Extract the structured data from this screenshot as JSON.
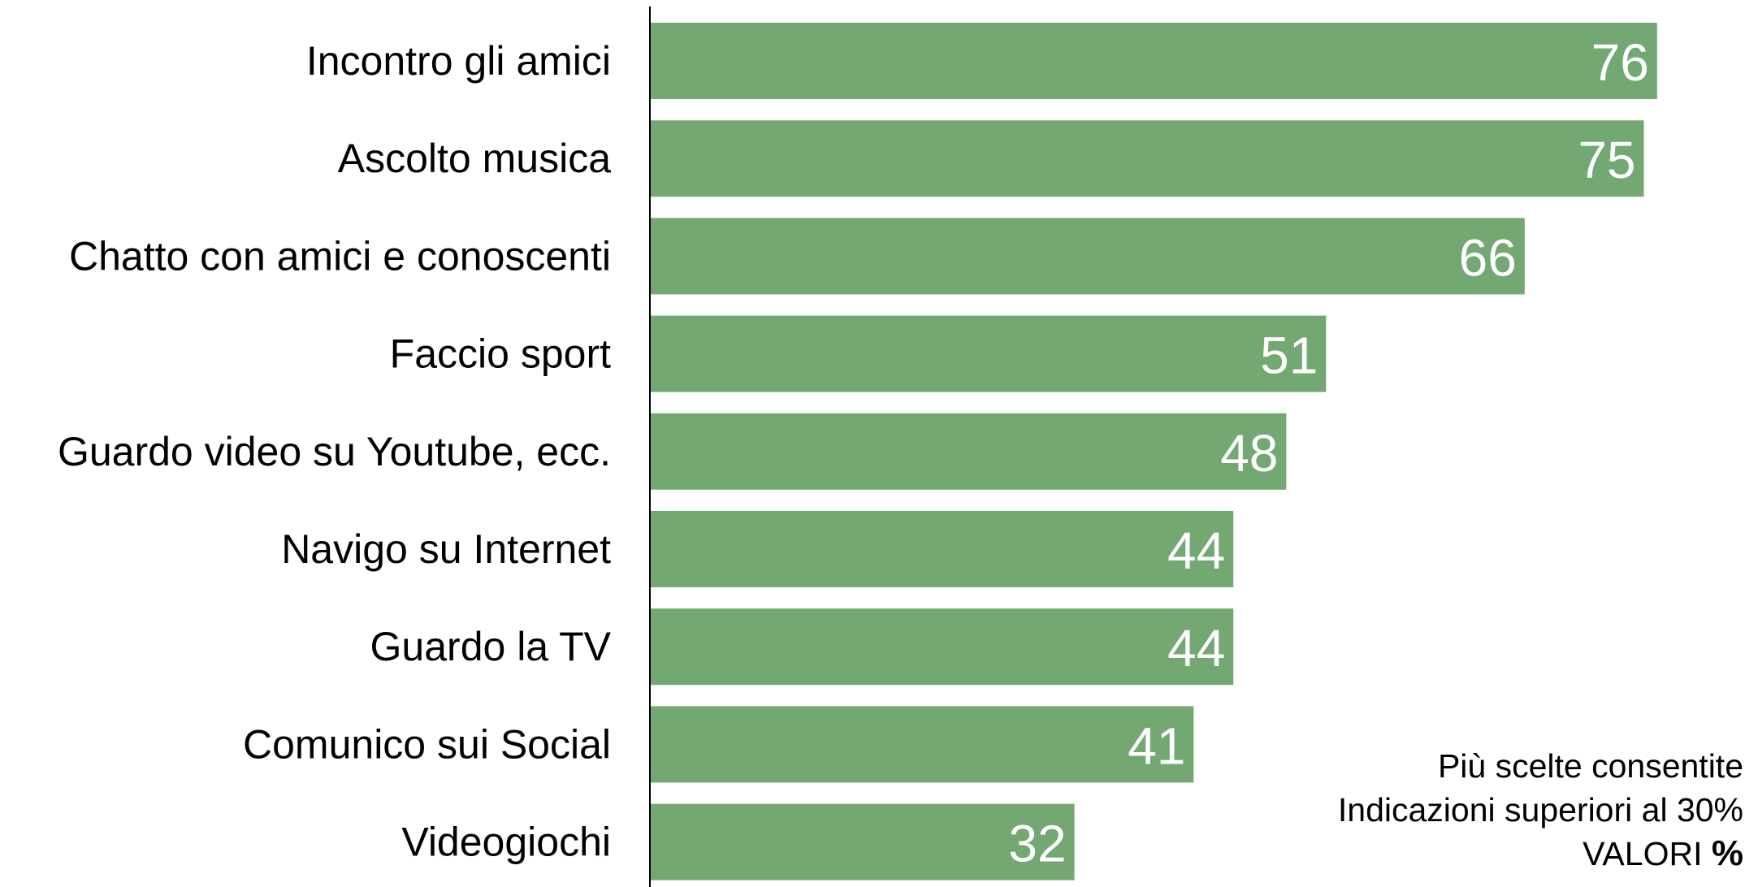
{
  "chart_data": {
    "type": "bar",
    "orientation": "horizontal",
    "categories": [
      "Incontro gli amici",
      "Ascolto musica",
      "Chatto con amici e conoscenti",
      "Faccio sport",
      "Guardo video su Youtube, ecc.",
      "Navigo su Internet",
      "Guardo la TV",
      "Comunico sui Social",
      "Videogiochi"
    ],
    "values": [
      76,
      75,
      66,
      51,
      48,
      44,
      44,
      41,
      32
    ],
    "data_labels": [
      "76",
      "75",
      "66",
      "51",
      "48",
      "44",
      "44",
      "41",
      "32"
    ],
    "bar_color": "#73a873",
    "value_label_color": "#ffffff",
    "xlim": [
      0,
      100
    ],
    "grid": false,
    "legend": "none"
  },
  "notes": {
    "line1": "Più scelte consentite",
    "line2": "Indicazioni superiori al 30%",
    "line3_prefix": "VALORI",
    "line3_symbol": "%"
  }
}
